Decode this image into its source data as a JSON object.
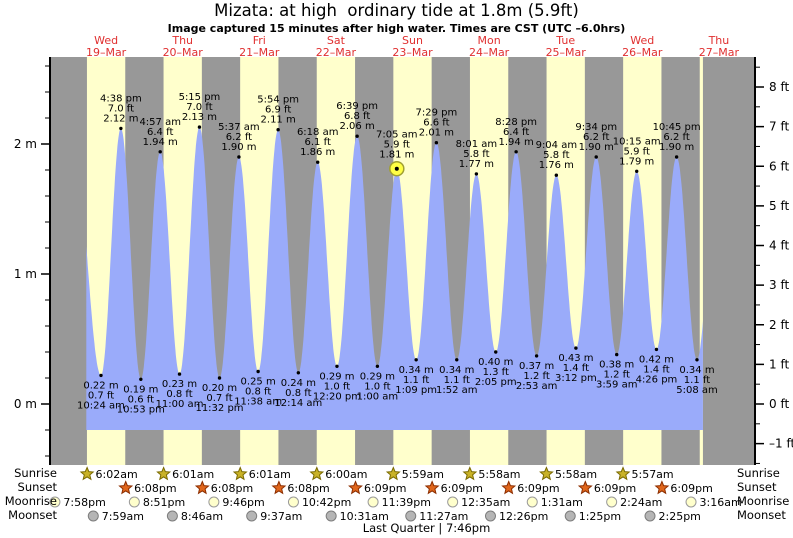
{
  "title": "Mizata: at high  ordinary tide at 1.8m (5.9ft)",
  "subtitle": "Image captured 15 minutes after high water. Times are CST (UTC –6.0hrs)",
  "row_labels": {
    "sunrise": "Sunrise",
    "sunset": "Sunset",
    "moonrise": "Moonrise",
    "moonset": "Moonset"
  },
  "footer": {
    "moon_phase": "Last Quarter | 7:46pm"
  },
  "chart_data": {
    "type": "area",
    "title": "Tide height curve for Mizata",
    "days": [
      {
        "weekday": "Wed",
        "date": "19–Mar"
      },
      {
        "weekday": "Thu",
        "date": "20–Mar"
      },
      {
        "weekday": "Fri",
        "date": "21–Mar"
      },
      {
        "weekday": "Sat",
        "date": "22–Mar"
      },
      {
        "weekday": "Sun",
        "date": "23–Mar"
      },
      {
        "weekday": "Mon",
        "date": "24–Mar"
      },
      {
        "weekday": "Tue",
        "date": "25–Mar"
      },
      {
        "weekday": "Wed",
        "date": "26–Mar"
      },
      {
        "weekday": "Thu",
        "date": "27–Mar"
      }
    ],
    "y_left": {
      "unit": "m",
      "ticks": [
        0,
        1,
        2
      ],
      "tick_labels": [
        "0 m",
        "1 m",
        "2 m"
      ]
    },
    "y_right": {
      "unit": "ft",
      "ticks": [
        -1,
        0,
        1,
        2,
        3,
        4,
        5,
        6,
        7,
        8
      ],
      "tick_labels": [
        "–1 ft",
        "0 ft",
        "1 ft",
        "2 ft",
        "3 ft",
        "4 ft",
        "5 ft",
        "6 ft",
        "7 ft",
        "8 ft"
      ]
    },
    "ylim_m": [
      -0.47,
      2.67
    ],
    "extremes": [
      {
        "day": 0,
        "time": "10:24 am",
        "type": "low",
        "m": 0.22,
        "ft": 0.7
      },
      {
        "day": 0,
        "time": "4:38 pm",
        "type": "high",
        "m": 2.12,
        "ft": 7.0
      },
      {
        "day": 0,
        "time": "10:53 pm",
        "type": "low",
        "m": 0.19,
        "ft": 0.6
      },
      {
        "day": 1,
        "time": "4:57 am",
        "type": "high",
        "m": 1.94,
        "ft": 6.4
      },
      {
        "day": 1,
        "time": "11:00 am",
        "type": "low",
        "m": 0.23,
        "ft": 0.8
      },
      {
        "day": 1,
        "time": "5:15 pm",
        "type": "high",
        "m": 2.13,
        "ft": 7.0
      },
      {
        "day": 1,
        "time": "11:32 pm",
        "type": "low",
        "m": 0.2,
        "ft": 0.7
      },
      {
        "day": 2,
        "time": "5:37 am",
        "type": "high",
        "m": 1.9,
        "ft": 6.2
      },
      {
        "day": 2,
        "time": "11:38 am",
        "type": "low",
        "m": 0.25,
        "ft": 0.8
      },
      {
        "day": 2,
        "time": "5:54 pm",
        "type": "high",
        "m": 2.11,
        "ft": 6.9
      },
      {
        "day": 3,
        "time": "12:14 am",
        "type": "low",
        "m": 0.24,
        "ft": 0.8
      },
      {
        "day": 3,
        "time": "6:18 am",
        "type": "high",
        "m": 1.86,
        "ft": 6.1
      },
      {
        "day": 3,
        "time": "12:20 pm",
        "type": "low",
        "m": 0.29,
        "ft": 1.0
      },
      {
        "day": 3,
        "time": "6:39 pm",
        "type": "high",
        "m": 2.06,
        "ft": 6.8
      },
      {
        "day": 4,
        "time": "1:00 am",
        "type": "low",
        "m": 0.29,
        "ft": 1.0
      },
      {
        "day": 4,
        "time": "7:05 am",
        "type": "high",
        "m": 1.81,
        "ft": 5.9
      },
      {
        "day": 4,
        "time": "1:09 pm",
        "type": "low",
        "m": 0.34,
        "ft": 1.1
      },
      {
        "day": 4,
        "time": "7:29 pm",
        "type": "high",
        "m": 2.01,
        "ft": 6.6
      },
      {
        "day": 5,
        "time": "1:52 am",
        "type": "low",
        "m": 0.34,
        "ft": 1.1
      },
      {
        "day": 5,
        "time": "8:01 am",
        "type": "high",
        "m": 1.77,
        "ft": 5.8
      },
      {
        "day": 5,
        "time": "2:05 pm",
        "type": "low",
        "m": 0.4,
        "ft": 1.3
      },
      {
        "day": 5,
        "time": "8:28 pm",
        "type": "high",
        "m": 1.94,
        "ft": 6.4
      },
      {
        "day": 6,
        "time": "2:53 am",
        "type": "low",
        "m": 0.37,
        "ft": 1.2
      },
      {
        "day": 6,
        "time": "9:04 am",
        "type": "high",
        "m": 1.76,
        "ft": 5.8
      },
      {
        "day": 6,
        "time": "3:12 pm",
        "type": "low",
        "m": 0.43,
        "ft": 1.4
      },
      {
        "day": 6,
        "time": "9:34 pm",
        "type": "high",
        "m": 1.9,
        "ft": 6.2
      },
      {
        "day": 7,
        "time": "3:59 am",
        "type": "low",
        "m": 0.38,
        "ft": 1.2
      },
      {
        "day": 7,
        "time": "10:15 am",
        "type": "high",
        "m": 1.79,
        "ft": 5.9
      },
      {
        "day": 7,
        "time": "4:26 pm",
        "type": "low",
        "m": 0.42,
        "ft": 1.4
      },
      {
        "day": 7,
        "time": "10:45 pm",
        "type": "high",
        "m": 1.9,
        "ft": 6.2
      },
      {
        "day": 8,
        "time": "5:08 am",
        "type": "low",
        "m": 0.34,
        "ft": 1.1
      }
    ],
    "current_marker": {
      "day": 4,
      "time": "7:05 am",
      "m": 1.81
    },
    "colors": {
      "water": "#9aabfa",
      "day_band": "#ffffcc",
      "night_band": "#989898",
      "date_text": "#e03030",
      "sunrise_star": "#c9b227",
      "sunrise_star_edge": "#7a6a00",
      "sunset_star": "#e0661c",
      "sunset_star_edge": "#8c2e00",
      "moonrise_circle": "#ffffcc",
      "moonrise_edge": "#9a9a9a",
      "moonset_circle": "#b5b5b5",
      "moonset_edge": "#7d7d7d",
      "marker_fill": "#ffff44",
      "marker_edge": "#a0a030"
    }
  },
  "astro_events": {
    "sunrise": [
      {
        "day": 0,
        "time": "6:02am"
      },
      {
        "day": 1,
        "time": "6:01am"
      },
      {
        "day": 2,
        "time": "6:01am"
      },
      {
        "day": 3,
        "time": "6:00am"
      },
      {
        "day": 4,
        "time": "5:59am"
      },
      {
        "day": 5,
        "time": "5:58am"
      },
      {
        "day": 6,
        "time": "5:58am"
      },
      {
        "day": 7,
        "time": "5:57am"
      }
    ],
    "sunset": [
      {
        "day": 0,
        "time": "6:08pm"
      },
      {
        "day": 1,
        "time": "6:08pm"
      },
      {
        "day": 2,
        "time": "6:08pm"
      },
      {
        "day": 3,
        "time": "6:09pm"
      },
      {
        "day": 4,
        "time": "6:09pm"
      },
      {
        "day": 5,
        "time": "6:09pm"
      },
      {
        "day": 6,
        "time": "6:09pm"
      },
      {
        "day": 7,
        "time": "6:09pm"
      }
    ],
    "moonrise": [
      {
        "day": -1,
        "time": "7:58pm"
      },
      {
        "day": 0,
        "time": "8:51pm"
      },
      {
        "day": 1,
        "time": "9:46pm"
      },
      {
        "day": 2,
        "time": "10:42pm"
      },
      {
        "day": 3,
        "time": "11:39pm"
      },
      {
        "day": 5,
        "time": "12:35am"
      },
      {
        "day": 6,
        "time": "1:31am"
      },
      {
        "day": 7,
        "time": "2:24am"
      },
      {
        "day": 8,
        "time": "3:16am"
      }
    ],
    "moonset": [
      {
        "day": 0,
        "time": "7:59am"
      },
      {
        "day": 1,
        "time": "8:46am"
      },
      {
        "day": 2,
        "time": "9:37am"
      },
      {
        "day": 3,
        "time": "10:31am"
      },
      {
        "day": 4,
        "time": "11:27am"
      },
      {
        "day": 5,
        "time": "12:26pm"
      },
      {
        "day": 6,
        "time": "1:25pm"
      },
      {
        "day": 7,
        "time": "2:25pm"
      }
    ]
  }
}
